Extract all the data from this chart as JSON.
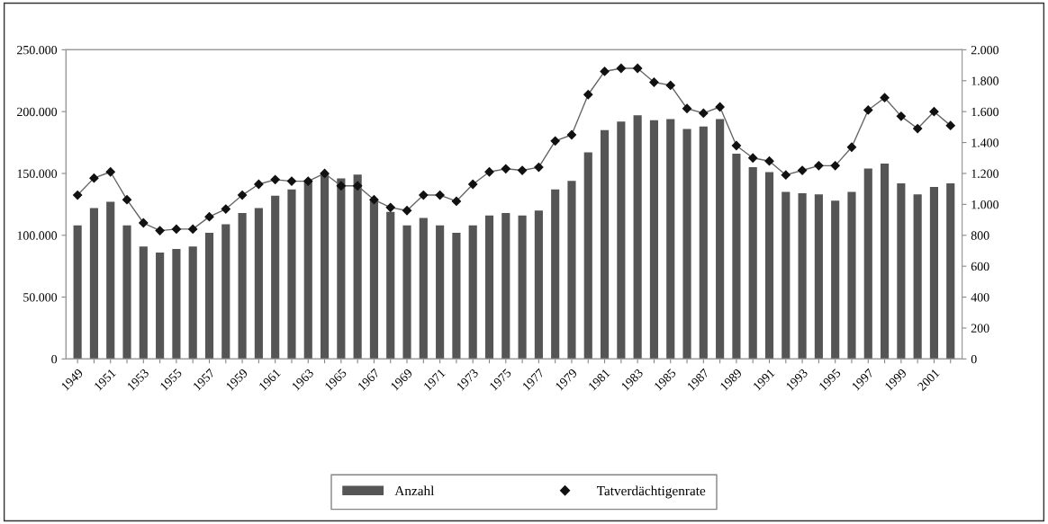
{
  "chart_data": {
    "type": "bar",
    "categories": [
      "1949",
      null,
      "1951",
      null,
      "1953",
      null,
      "1955",
      null,
      "1957",
      null,
      "1959",
      null,
      "1961",
      null,
      "1963",
      null,
      "1965",
      null,
      "1967",
      null,
      "1969",
      null,
      "1971",
      null,
      "1973",
      null,
      "1975",
      null,
      "1977",
      null,
      "1979",
      null,
      "1981",
      null,
      "1983",
      null,
      "1985",
      null,
      "1987",
      null,
      "1989",
      null,
      "1991",
      null,
      "1993",
      null,
      "1995",
      null,
      "1997",
      null,
      "1999",
      null,
      "2001",
      null
    ],
    "series": [
      {
        "name": "Anzahl",
        "color": "#555555",
        "values": [
          108000,
          122000,
          127000,
          108000,
          91000,
          86000,
          89000,
          91000,
          102000,
          109000,
          118000,
          122000,
          132000,
          137000,
          144000,
          150000,
          146000,
          149000,
          128000,
          119000,
          108000,
          114000,
          108000,
          102000,
          108000,
          116000,
          118000,
          116000,
          120000,
          137000,
          144000,
          167000,
          185000,
          192000,
          197000,
          193000,
          194000,
          186000,
          188000,
          194000,
          166000,
          155000,
          151000,
          135000,
          134000,
          133000,
          128000,
          135000,
          154000,
          158000,
          142000,
          133000,
          139000,
          142000
        ]
      },
      {
        "name": "Tatverdächtigenrate",
        "type": "line",
        "axis": "y2",
        "color": "#111111",
        "marker": "diamond",
        "line_style": "solid",
        "values": [
          1060,
          1170,
          1210,
          1030,
          880,
          830,
          840,
          840,
          920,
          970,
          1060,
          1130,
          1160,
          1150,
          1150,
          1200,
          1120,
          1120,
          1030,
          980,
          960,
          1060,
          1060,
          1020,
          1130,
          1210,
          1230,
          1220,
          1240,
          1410,
          1450,
          1710,
          1860,
          1880,
          1880,
          1790,
          1770,
          1620,
          1590,
          1630,
          1380,
          1300,
          1280,
          1190,
          1220,
          1250,
          1250,
          1370,
          1610,
          1690,
          1570,
          1490,
          1600,
          1510
        ]
      }
    ],
    "ylim": [
      0,
      250000
    ],
    "yticks": [
      {
        "value": 0,
        "label": "0"
      },
      {
        "value": 50000,
        "label": "50.000"
      },
      {
        "value": 100000,
        "label": "100.000"
      },
      {
        "value": 150000,
        "label": "150.000"
      },
      {
        "value": 200000,
        "label": "200.000"
      },
      {
        "value": 250000,
        "label": "250.000"
      }
    ],
    "y2lim": [
      0,
      2000
    ],
    "y2ticks": [
      0,
      200,
      400,
      600,
      800,
      {
        "value": 1000,
        "label": "1.000"
      },
      {
        "value": 1200,
        "label": "1.200"
      },
      {
        "value": 1400,
        "label": "1.400"
      },
      {
        "value": 1600,
        "label": "1.600"
      },
      {
        "value": 1800,
        "label": "1.800"
      },
      {
        "value": 2000,
        "label": "2.000"
      }
    ],
    "grid": false,
    "legend": "bottom"
  }
}
